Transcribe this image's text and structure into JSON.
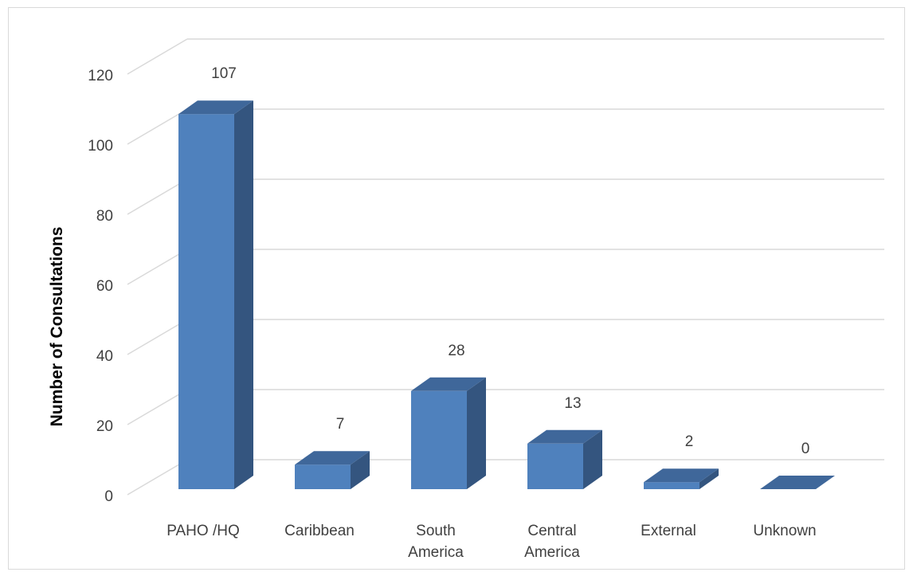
{
  "chart_data": {
    "type": "bar",
    "title": "",
    "xlabel": "",
    "ylabel": "Number of Consultations",
    "ylim": [
      0,
      120
    ],
    "yticks": [
      0,
      20,
      40,
      60,
      80,
      100,
      120
    ],
    "grid": true,
    "legend": "none",
    "categories": [
      [
        "PAHO /HQ"
      ],
      [
        "Caribbean"
      ],
      [
        "South",
        "America"
      ],
      [
        "Central",
        "America"
      ],
      [
        "External"
      ],
      [
        "Unknown"
      ]
    ],
    "values": [
      107,
      7,
      28,
      13,
      2,
      0
    ],
    "colors": {
      "bar_front": "#4f81bd",
      "bar_side": "#34557f",
      "bar_top": "#3f679a",
      "grid": "#d9d9d9",
      "text": "#404040"
    }
  }
}
